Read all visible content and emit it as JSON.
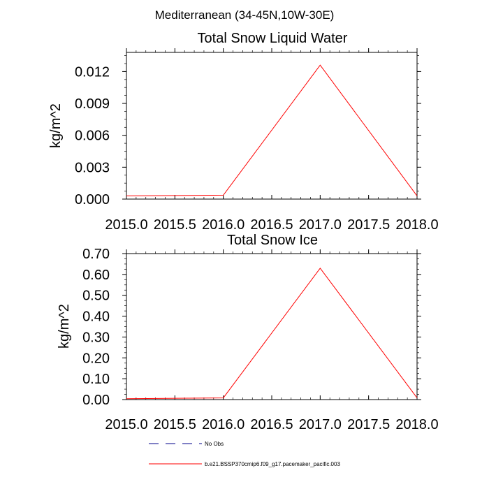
{
  "figure": {
    "suptitle": "Mediterranean (34-45N,10W-30E)"
  },
  "chart_data": [
    {
      "type": "line",
      "title": "Total Snow Liquid Water",
      "xlabel": "",
      "ylabel": "kg/m^2",
      "xlim": [
        2015.0,
        2018.0
      ],
      "ylim": [
        0.0,
        0.0138
      ],
      "xticks": [
        "2015.0",
        "2015.5",
        "2016.0",
        "2016.5",
        "2017.0",
        "2017.5",
        "2018.0"
      ],
      "yticks": [
        "0.000",
        "0.003",
        "0.006",
        "0.009",
        "0.012"
      ],
      "grid": false,
      "series": [
        {
          "name": "b.e21.BSSP370cmip6.f09_g17.pacemaker_pacific.003",
          "color": "#ff0000",
          "x": [
            2015.0,
            2016.0,
            2017.0,
            2018.0
          ],
          "y": [
            0.0003,
            0.00037,
            0.0126,
            0.0003
          ]
        }
      ]
    },
    {
      "type": "line",
      "title": "Total Snow Ice",
      "xlabel": "",
      "ylabel": "kg/m^2",
      "xlim": [
        2015.0,
        2018.0
      ],
      "ylim": [
        0.0,
        0.7
      ],
      "xticks": [
        "2015.0",
        "2015.5",
        "2016.0",
        "2016.5",
        "2017.0",
        "2017.5",
        "2018.0"
      ],
      "yticks": [
        "0.00",
        "0.10",
        "0.20",
        "0.30",
        "0.40",
        "0.50",
        "0.60",
        "0.70"
      ],
      "grid": false,
      "series": [
        {
          "name": "b.e21.BSSP370cmip6.f09_g17.pacemaker_pacific.003",
          "color": "#ff0000",
          "x": [
            2015.0,
            2016.0,
            2017.0,
            2018.0
          ],
          "y": [
            0.004,
            0.008,
            0.63,
            0.008
          ]
        }
      ]
    }
  ],
  "legend": {
    "placement": "bottom",
    "items": [
      {
        "label": "No Obs",
        "color": "#00008b",
        "style": "dashed"
      },
      {
        "label": "b.e21.BSSP370cmip6.f09_g17.pacemaker_pacific.003",
        "color": "#ff0000",
        "style": "solid"
      }
    ]
  }
}
